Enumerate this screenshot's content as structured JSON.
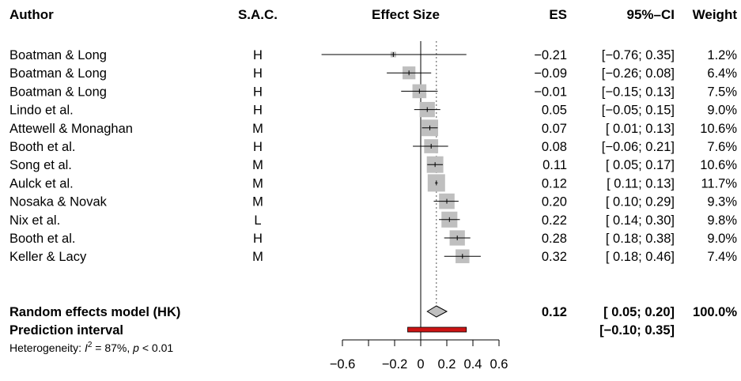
{
  "chart_data": {
    "type": "forest",
    "headers": {
      "author": "Author",
      "sac": "S.A.C.",
      "effect": "Effect Size",
      "es": "ES",
      "ci": "95%–CI",
      "weight": "Weight"
    },
    "studies": [
      {
        "author": "Boatman & Long",
        "sac": "H",
        "es": -0.21,
        "lo": -0.76,
        "hi": 0.35,
        "es_text": "−0.21",
        "ci_text": "[−0.76; 0.35]",
        "weight": 1.2,
        "weight_text": "1.2%"
      },
      {
        "author": "Boatman & Long",
        "sac": "H",
        "es": -0.09,
        "lo": -0.26,
        "hi": 0.08,
        "es_text": "−0.09",
        "ci_text": "[−0.26; 0.08]",
        "weight": 6.4,
        "weight_text": "6.4%"
      },
      {
        "author": "Boatman & Long",
        "sac": "H",
        "es": -0.01,
        "lo": -0.15,
        "hi": 0.13,
        "es_text": "−0.01",
        "ci_text": "[−0.15; 0.13]",
        "weight": 7.5,
        "weight_text": "7.5%"
      },
      {
        "author": "Lindo et al.",
        "sac": "H",
        "es": 0.05,
        "lo": -0.05,
        "hi": 0.15,
        "es_text": "0.05",
        "ci_text": "[−0.05; 0.15]",
        "weight": 9.0,
        "weight_text": "9.0%"
      },
      {
        "author": "Attewell & Monaghan",
        "sac": "M",
        "es": 0.07,
        "lo": 0.01,
        "hi": 0.13,
        "es_text": "0.07",
        "ci_text": "[ 0.01; 0.13]",
        "weight": 10.6,
        "weight_text": "10.6%"
      },
      {
        "author": "Booth et al.",
        "sac": "H",
        "es": 0.08,
        "lo": -0.06,
        "hi": 0.21,
        "es_text": "0.08",
        "ci_text": "[−0.06; 0.21]",
        "weight": 7.6,
        "weight_text": "7.6%"
      },
      {
        "author": "Song et al.",
        "sac": "M",
        "es": 0.11,
        "lo": 0.05,
        "hi": 0.17,
        "es_text": "0.11",
        "ci_text": "[ 0.05; 0.17]",
        "weight": 10.6,
        "weight_text": "10.6%"
      },
      {
        "author": "Aulck et al.",
        "sac": "M",
        "es": 0.12,
        "lo": 0.11,
        "hi": 0.13,
        "es_text": "0.12",
        "ci_text": "[ 0.11; 0.13]",
        "weight": 11.7,
        "weight_text": "11.7%"
      },
      {
        "author": "Nosaka & Novak",
        "sac": "M",
        "es": 0.2,
        "lo": 0.1,
        "hi": 0.29,
        "es_text": "0.20",
        "ci_text": "[ 0.10; 0.29]",
        "weight": 9.3,
        "weight_text": "9.3%"
      },
      {
        "author": "Nix et al.",
        "sac": "L",
        "es": 0.22,
        "lo": 0.14,
        "hi": 0.3,
        "es_text": "0.22",
        "ci_text": "[ 0.14; 0.30]",
        "weight": 9.8,
        "weight_text": "9.8%"
      },
      {
        "author": "Booth et al.",
        "sac": "H",
        "es": 0.28,
        "lo": 0.18,
        "hi": 0.38,
        "es_text": "0.28",
        "ci_text": "[ 0.18; 0.38]",
        "weight": 9.0,
        "weight_text": "9.0%"
      },
      {
        "author": "Keller & Lacy",
        "sac": "M",
        "es": 0.32,
        "lo": 0.18,
        "hi": 0.46,
        "es_text": "0.32",
        "ci_text": "[ 0.18; 0.46]",
        "weight": 7.4,
        "weight_text": "7.4%"
      }
    ],
    "random_effects": {
      "label": "Random effects model (HK)",
      "es": 0.12,
      "lo": 0.05,
      "hi": 0.2,
      "es_text": "0.12",
      "ci_text": "[ 0.05; 0.20]",
      "weight_text": "100.0%"
    },
    "prediction_interval": {
      "label": "Prediction interval",
      "lo": -0.1,
      "hi": 0.35,
      "ci_text": "[−0.10; 0.35]"
    },
    "heterogeneity": {
      "prefix": "Heterogeneity: ",
      "i2_symbol": "I",
      "i2_sup": "2",
      "i2_value": " = 87%, ",
      "p_symbol": "p",
      "p_value": " < 0.01"
    },
    "x_axis": {
      "ticks": [
        -0.6,
        -0.4,
        -0.2,
        0,
        0.2,
        0.4,
        0.6
      ],
      "tick_labels": [
        {
          "v": -0.6,
          "t": "−0.6"
        },
        {
          "v": -0.2,
          "t": "−0.2"
        },
        {
          "v": 0,
          "t": "0"
        },
        {
          "v": 0.2,
          "t": "0.2"
        },
        {
          "v": 0.4,
          "t": "0.4"
        },
        {
          "v": 0.6,
          "t": "0.6"
        }
      ],
      "xlim": [
        -0.8,
        0.6
      ],
      "null_line": 0
    },
    "colors": {
      "square": "#bfbfbf",
      "diamond": "#bfbfbf",
      "prediction": "#cc1414",
      "reference": "#000000"
    }
  }
}
